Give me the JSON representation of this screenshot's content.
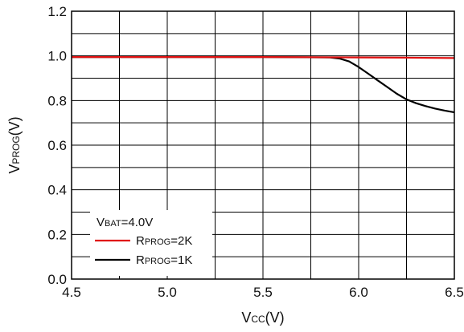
{
  "chart_data": {
    "type": "line",
    "xlabel": {
      "main": "V",
      "sub": "CC",
      "tail": "(V)"
    },
    "ylabel": {
      "main": "V",
      "sub": "PROG",
      "tail": "(V)"
    },
    "xlim": [
      4.5,
      6.5
    ],
    "ylim": [
      0.0,
      1.2
    ],
    "x_ticks": [
      4.5,
      5.0,
      5.5,
      6.0,
      6.5
    ],
    "x_tick_labels": [
      "4.5",
      "5.0",
      "5.5",
      "6.0",
      "6.5"
    ],
    "y_ticks": [
      0.0,
      0.2,
      0.4,
      0.6,
      0.8,
      1.0,
      1.2
    ],
    "y_tick_labels": [
      "0.0",
      "0.2",
      "0.4",
      "0.6",
      "0.8",
      "1.0",
      "1.2"
    ],
    "x_grid_step": 0.25,
    "y_grid_step": 0.1,
    "grid": true,
    "legend": {
      "placement": "bottom-left",
      "title": {
        "main": "V",
        "sub": "BAT",
        "tail": "=4.0V"
      },
      "entries": [
        {
          "main": "R",
          "sub": "PROG",
          "tail": "=2K"
        },
        {
          "main": "R",
          "sub": "PROG",
          "tail": "=1K"
        }
      ]
    },
    "series": [
      {
        "color": "#000000",
        "x": [
          4.5,
          5.0,
          5.5,
          5.85,
          5.9,
          5.95,
          6.0,
          6.05,
          6.1,
          6.15,
          6.2,
          6.25,
          6.3,
          6.35,
          6.4,
          6.45,
          6.5
        ],
        "y": [
          0.995,
          0.995,
          0.995,
          0.993,
          0.988,
          0.975,
          0.95,
          0.92,
          0.89,
          0.86,
          0.83,
          0.805,
          0.788,
          0.775,
          0.764,
          0.755,
          0.747
        ]
      },
      {
        "color": "#e01010",
        "x": [
          4.5,
          5.0,
          5.5,
          6.0,
          6.25,
          6.5
        ],
        "y": [
          0.995,
          0.995,
          0.995,
          0.993,
          0.992,
          0.99
        ]
      }
    ]
  }
}
